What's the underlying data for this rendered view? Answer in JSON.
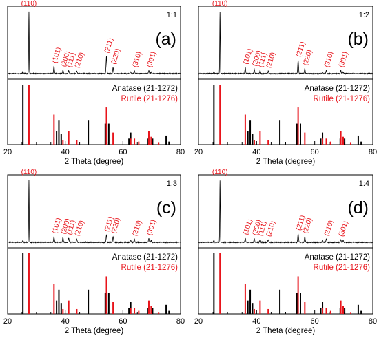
{
  "chart_data": {
    "type": "line",
    "x_axis": {
      "label": "2 Theta (degree)",
      "range": [
        20,
        80
      ],
      "ticks": [
        20,
        40,
        60,
        80
      ],
      "minor_step": 5
    },
    "colors": {
      "anatase": "#000000",
      "rutile": "#e8141b",
      "xrd": "#000000"
    },
    "reference_series": [
      {
        "name": "Anatase (21-1272)",
        "color": "#000000",
        "peaks": [
          [
            25.3,
            1.0
          ],
          [
            37.0,
            0.22
          ],
          [
            37.8,
            0.4
          ],
          [
            38.6,
            0.18
          ],
          [
            48.0,
            0.4
          ],
          [
            53.9,
            0.35
          ],
          [
            55.1,
            0.35
          ],
          [
            62.1,
            0.1
          ],
          [
            62.7,
            0.2
          ],
          [
            68.8,
            0.1
          ],
          [
            70.3,
            0.1
          ],
          [
            75.0,
            0.15
          ],
          [
            76.0,
            0.05
          ]
        ]
      },
      {
        "name": "Rutile (21-1276)",
        "color": "#e8141b",
        "peaks": [
          [
            27.4,
            1.0
          ],
          [
            36.1,
            0.5
          ],
          [
            39.2,
            0.08
          ],
          [
            41.2,
            0.22
          ],
          [
            44.0,
            0.08
          ],
          [
            54.3,
            0.62
          ],
          [
            56.6,
            0.2
          ],
          [
            62.7,
            0.1
          ],
          [
            64.0,
            0.1
          ],
          [
            65.5,
            0.05
          ],
          [
            69.0,
            0.22
          ],
          [
            69.8,
            0.13
          ],
          [
            72.4,
            0.03
          ]
        ]
      }
    ],
    "panels": [
      {
        "label": "(a)",
        "ratio": "1:1",
        "xrd_peaks": [
          [
            25.3,
            0.03
          ],
          [
            27.4,
            1.0
          ],
          [
            36.1,
            0.12
          ],
          [
            39.2,
            0.06
          ],
          [
            41.2,
            0.05
          ],
          [
            44.0,
            0.04
          ],
          [
            54.3,
            0.28
          ],
          [
            56.6,
            0.1
          ],
          [
            62.7,
            0.03
          ],
          [
            64.0,
            0.05
          ],
          [
            69.0,
            0.05
          ],
          [
            69.8,
            0.03
          ]
        ]
      },
      {
        "label": "(b)",
        "ratio": "1:2",
        "xrd_peaks": [
          [
            25.3,
            0.03
          ],
          [
            27.4,
            1.0
          ],
          [
            36.1,
            0.1
          ],
          [
            39.2,
            0.07
          ],
          [
            41.2,
            0.05
          ],
          [
            44.0,
            0.04
          ],
          [
            54.3,
            0.22
          ],
          [
            56.6,
            0.08
          ],
          [
            62.7,
            0.03
          ],
          [
            64.0,
            0.05
          ],
          [
            69.0,
            0.05
          ],
          [
            69.8,
            0.03
          ]
        ]
      },
      {
        "label": "(c)",
        "ratio": "1:3",
        "xrd_peaks": [
          [
            25.3,
            0.03
          ],
          [
            27.4,
            1.0
          ],
          [
            36.1,
            0.09
          ],
          [
            39.2,
            0.08
          ],
          [
            41.2,
            0.07
          ],
          [
            44.0,
            0.05
          ],
          [
            54.3,
            0.12
          ],
          [
            56.6,
            0.09
          ],
          [
            62.7,
            0.03
          ],
          [
            64.0,
            0.05
          ],
          [
            69.0,
            0.06
          ],
          [
            69.8,
            0.03
          ]
        ]
      },
      {
        "label": "(d)",
        "ratio": "1:4",
        "xrd_peaks": [
          [
            25.3,
            0.03
          ],
          [
            27.4,
            1.0
          ],
          [
            36.1,
            0.07
          ],
          [
            39.2,
            0.06
          ],
          [
            41.2,
            0.05
          ],
          [
            44.0,
            0.04
          ],
          [
            54.3,
            0.14
          ],
          [
            56.6,
            0.09
          ],
          [
            62.7,
            0.03
          ],
          [
            64.0,
            0.05
          ],
          [
            69.0,
            0.04
          ],
          [
            69.8,
            0.03
          ]
        ]
      }
    ],
    "peak_annotations": [
      {
        "text": "(110)",
        "x": 27.4
      },
      {
        "text": "(101)",
        "x": 36.1
      },
      {
        "text": "(200)",
        "x": 39.2
      },
      {
        "text": "(111)",
        "x": 41.2
      },
      {
        "text": "(210)",
        "x": 44.0
      },
      {
        "text": "(211)",
        "x": 54.3
      },
      {
        "text": "(220)",
        "x": 56.6
      },
      {
        "text": "(310)",
        "x": 64.0
      },
      {
        "text": "(301)",
        "x": 69.0
      }
    ]
  }
}
